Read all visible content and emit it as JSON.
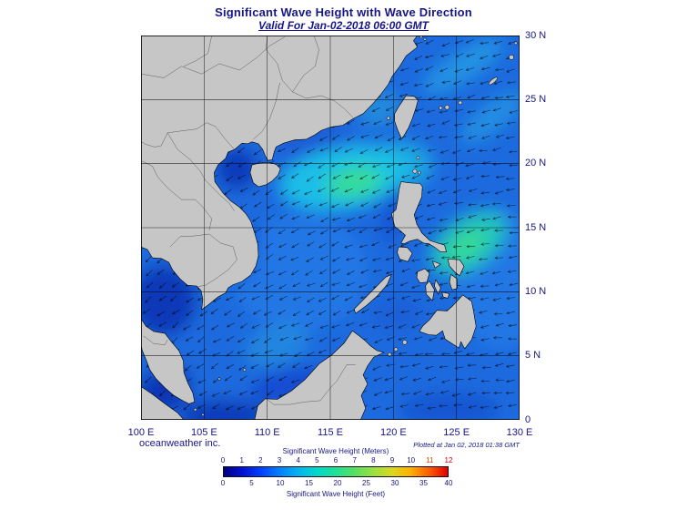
{
  "header": {
    "title": "Significant Wave Height with Wave Direction",
    "subtitle": "Valid For Jan-02-2018 06:00 GMT"
  },
  "footer": {
    "credit": "oceanweather inc.",
    "plotted": "Plotted at Jan 02, 2018 01:38 GMT"
  },
  "map": {
    "extent": {
      "lon_min": 100,
      "lon_max": 130,
      "lat_min": 0,
      "lat_max": 30
    },
    "lat_ticks": [
      {
        "value": 30,
        "label": "30 N"
      },
      {
        "value": 25,
        "label": "25 N"
      },
      {
        "value": 20,
        "label": "20 N"
      },
      {
        "value": 15,
        "label": "15 N"
      },
      {
        "value": 10,
        "label": "10 N"
      },
      {
        "value": 5,
        "label": "5 N"
      },
      {
        "value": 0,
        "label": "0"
      }
    ],
    "lon_ticks": [
      {
        "value": 100,
        "label": "100 E"
      },
      {
        "value": 105,
        "label": "105 E"
      },
      {
        "value": 110,
        "label": "110 E"
      },
      {
        "value": 115,
        "label": "115 E"
      },
      {
        "value": 120,
        "label": "120 E"
      },
      {
        "value": 125,
        "label": "125 E"
      },
      {
        "value": 130,
        "label": "130 E"
      }
    ],
    "land_color": "#c6c6c6",
    "ocean_base_color": "#1e6ade",
    "arrow_color": "#000000",
    "arrow_meaning": "wave direction (pointing predominantly W to SW)",
    "wave_field_regions": [
      {
        "area": "Northern South China Sea west of Luzon Strait",
        "approx_hs_m": "3-4"
      },
      {
        "area": "Philippine Sea east of the Philippines",
        "approx_hs_m": "3-3.5"
      },
      {
        "area": "Central South China Sea",
        "approx_hs_m": "2-2.5"
      },
      {
        "area": "Gulf of Thailand",
        "approx_hs_m": "0.5-1"
      },
      {
        "area": "Gulf of Tonkin",
        "approx_hs_m": "0.5-1.5"
      },
      {
        "area": "East China Sea (northeast corner)",
        "approx_hs_m": "2-3"
      }
    ]
  },
  "legend": {
    "title_meters": "Significant Wave Height (Meters)",
    "title_feet": "Significant Wave Height (Feet)",
    "meter_ticks": [
      {
        "label": "0",
        "color": "#171788"
      },
      {
        "label": "1",
        "color": "#171788"
      },
      {
        "label": "2",
        "color": "#171788"
      },
      {
        "label": "3",
        "color": "#171788"
      },
      {
        "label": "4",
        "color": "#171788"
      },
      {
        "label": "5",
        "color": "#171788"
      },
      {
        "label": "6",
        "color": "#171788"
      },
      {
        "label": "7",
        "color": "#171788"
      },
      {
        "label": "8",
        "color": "#171788"
      },
      {
        "label": "9",
        "color": "#171788"
      },
      {
        "label": "10",
        "color": "#171788"
      },
      {
        "label": "11",
        "color": "#d84600"
      },
      {
        "label": "12",
        "color": "#cc0000"
      }
    ],
    "feet_ticks": [
      {
        "label": "0",
        "feet": 0
      },
      {
        "label": "5",
        "feet": 5
      },
      {
        "label": "10",
        "feet": 10
      },
      {
        "label": "15",
        "feet": 15
      },
      {
        "label": "20",
        "feet": 20
      },
      {
        "label": "25",
        "feet": 25
      },
      {
        "label": "30",
        "feet": 30
      },
      {
        "label": "35",
        "feet": 35
      },
      {
        "label": "40",
        "feet": 40
      }
    ],
    "colors": [
      "#000082",
      "#0010d0",
      "#0040ff",
      "#0080ff",
      "#00b4f0",
      "#00d8c8",
      "#20e09a",
      "#55e060",
      "#9ae040",
      "#d8d820",
      "#ffb000",
      "#ff5c00",
      "#e00000"
    ]
  },
  "text_color": "#171788"
}
